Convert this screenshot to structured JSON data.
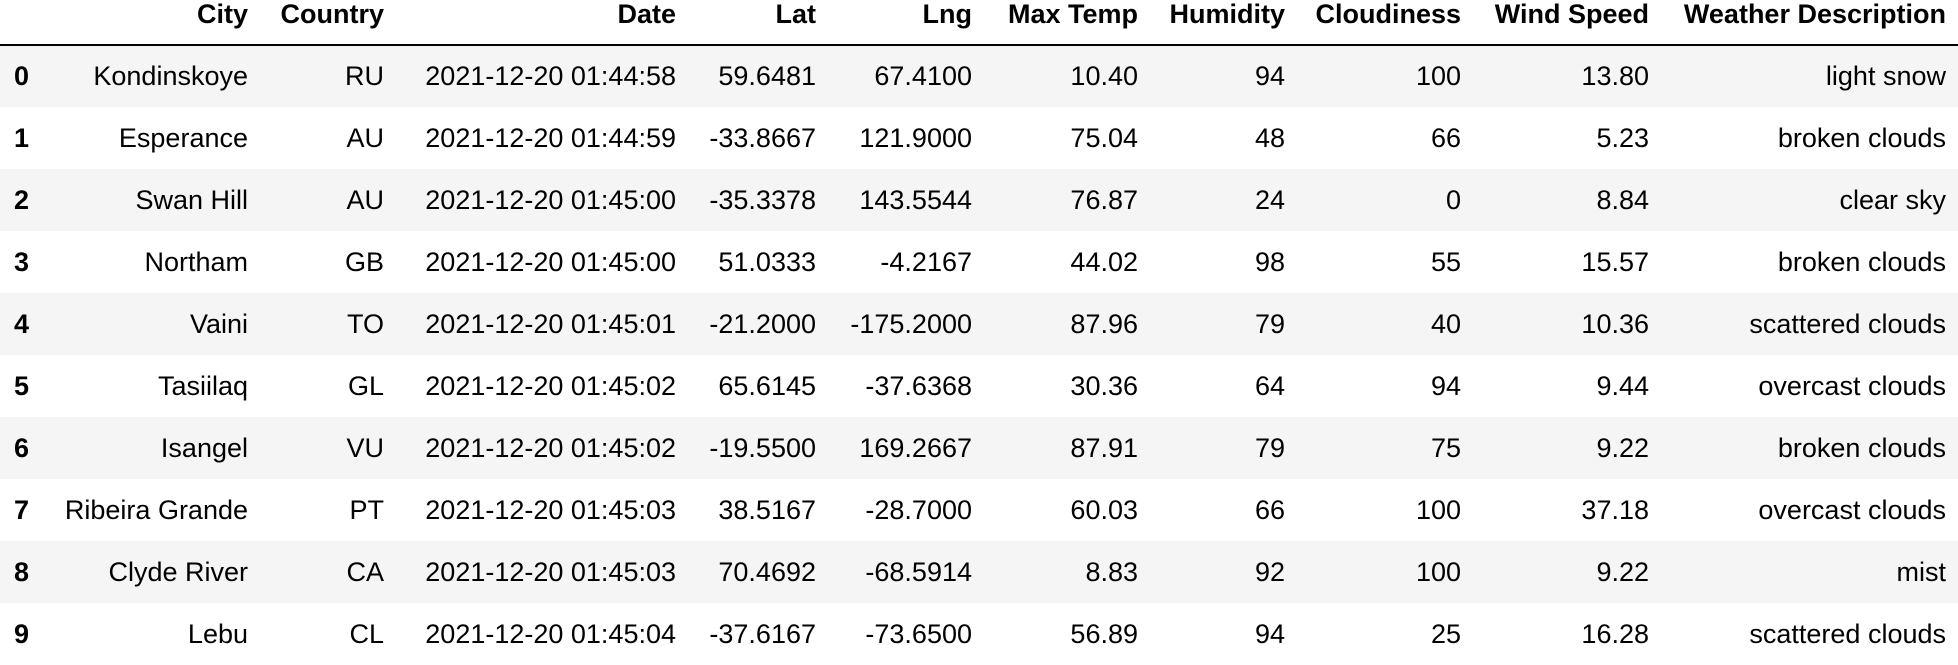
{
  "table": {
    "columns": [
      "",
      "City",
      "Country",
      "Date",
      "Lat",
      "Lng",
      "Max Temp",
      "Humidity",
      "Cloudiness",
      "Wind Speed",
      "Weather Description"
    ],
    "rows": [
      [
        "0",
        "Kondinskoye",
        "RU",
        "2021-12-20 01:44:58",
        "59.6481",
        "67.4100",
        "10.40",
        "94",
        "100",
        "13.80",
        "light snow"
      ],
      [
        "1",
        "Esperance",
        "AU",
        "2021-12-20 01:44:59",
        "-33.8667",
        "121.9000",
        "75.04",
        "48",
        "66",
        "5.23",
        "broken clouds"
      ],
      [
        "2",
        "Swan Hill",
        "AU",
        "2021-12-20 01:45:00",
        "-35.3378",
        "143.5544",
        "76.87",
        "24",
        "0",
        "8.84",
        "clear sky"
      ],
      [
        "3",
        "Northam",
        "GB",
        "2021-12-20 01:45:00",
        "51.0333",
        "-4.2167",
        "44.02",
        "98",
        "55",
        "15.57",
        "broken clouds"
      ],
      [
        "4",
        "Vaini",
        "TO",
        "2021-12-20 01:45:01",
        "-21.2000",
        "-175.2000",
        "87.96",
        "79",
        "40",
        "10.36",
        "scattered clouds"
      ],
      [
        "5",
        "Tasiilaq",
        "GL",
        "2021-12-20 01:45:02",
        "65.6145",
        "-37.6368",
        "30.36",
        "64",
        "94",
        "9.44",
        "overcast clouds"
      ],
      [
        "6",
        "Isangel",
        "VU",
        "2021-12-20 01:45:02",
        "-19.5500",
        "169.2667",
        "87.91",
        "79",
        "75",
        "9.22",
        "broken clouds"
      ],
      [
        "7",
        "Ribeira Grande",
        "PT",
        "2021-12-20 01:45:03",
        "38.5167",
        "-28.7000",
        "60.03",
        "66",
        "100",
        "37.18",
        "overcast clouds"
      ],
      [
        "8",
        "Clyde River",
        "CA",
        "2021-12-20 01:45:03",
        "70.4692",
        "-68.5914",
        "8.83",
        "92",
        "100",
        "9.22",
        "mist"
      ],
      [
        "9",
        "Lebu",
        "CL",
        "2021-12-20 01:45:04",
        "-37.6167",
        "-73.6500",
        "56.89",
        "94",
        "25",
        "16.28",
        "scattered clouds"
      ]
    ]
  }
}
